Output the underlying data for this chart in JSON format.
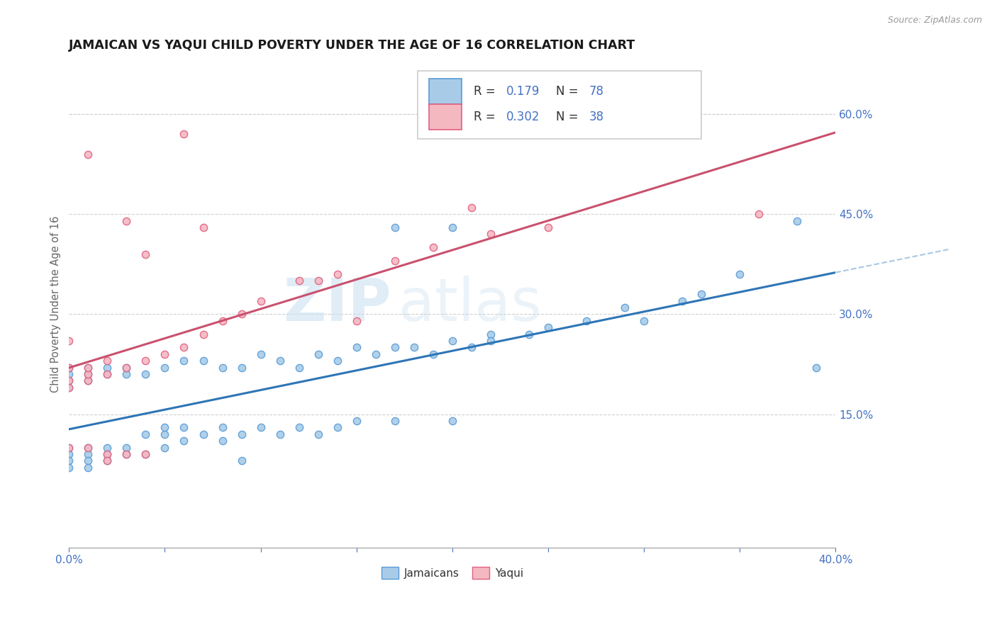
{
  "title": "JAMAICAN VS YAQUI CHILD POVERTY UNDER THE AGE OF 16 CORRELATION CHART",
  "source": "Source: ZipAtlas.com",
  "ylabel": "Child Poverty Under the Age of 16",
  "xlim": [
    0.0,
    0.4
  ],
  "ylim": [
    -0.05,
    0.68
  ],
  "xticks": [
    0.0,
    0.05,
    0.1,
    0.15,
    0.2,
    0.25,
    0.3,
    0.35,
    0.4
  ],
  "yticks_right": [
    0.15,
    0.3,
    0.45,
    0.6
  ],
  "ytick_right_labels": [
    "15.0%",
    "30.0%",
    "45.0%",
    "60.0%"
  ],
  "blue_color": "#a8cce8",
  "blue_edge_color": "#5b9bd5",
  "pink_color": "#f4b8c1",
  "pink_edge_color": "#e06080",
  "blue_line_color": "#2e75b6",
  "pink_line_color": "#c9516e",
  "blue_scatter_x": [
    0.0,
    0.0,
    0.0,
    0.0,
    0.0,
    0.0,
    0.0,
    0.0,
    0.01,
    0.01,
    0.01,
    0.01,
    0.01,
    0.01,
    0.01,
    0.02,
    0.02,
    0.02,
    0.02,
    0.02,
    0.03,
    0.03,
    0.03,
    0.03,
    0.04,
    0.04,
    0.04,
    0.05,
    0.05,
    0.05,
    0.06,
    0.06,
    0.06,
    0.07,
    0.07,
    0.08,
    0.08,
    0.08,
    0.09,
    0.09,
    0.1,
    0.1,
    0.11,
    0.11,
    0.12,
    0.12,
    0.13,
    0.13,
    0.14,
    0.14,
    0.15,
    0.15,
    0.16,
    0.17,
    0.17,
    0.18,
    0.19,
    0.2,
    0.2,
    0.21,
    0.22,
    0.22,
    0.24,
    0.25,
    0.27,
    0.29,
    0.3,
    0.32,
    0.33,
    0.35,
    0.38,
    0.39,
    0.2,
    0.17,
    0.09,
    0.05
  ],
  "blue_scatter_y": [
    0.19,
    0.2,
    0.21,
    0.22,
    0.1,
    0.09,
    0.08,
    0.07,
    0.2,
    0.21,
    0.22,
    0.1,
    0.09,
    0.08,
    0.07,
    0.21,
    0.22,
    0.1,
    0.09,
    0.08,
    0.21,
    0.22,
    0.1,
    0.09,
    0.21,
    0.12,
    0.09,
    0.22,
    0.12,
    0.1,
    0.23,
    0.13,
    0.11,
    0.23,
    0.12,
    0.22,
    0.13,
    0.11,
    0.22,
    0.12,
    0.24,
    0.13,
    0.23,
    0.12,
    0.22,
    0.13,
    0.24,
    0.12,
    0.23,
    0.13,
    0.25,
    0.14,
    0.24,
    0.25,
    0.14,
    0.25,
    0.24,
    0.26,
    0.14,
    0.25,
    0.27,
    0.26,
    0.27,
    0.28,
    0.29,
    0.31,
    0.29,
    0.32,
    0.33,
    0.36,
    0.44,
    0.22,
    0.43,
    0.43,
    0.08,
    0.13
  ],
  "pink_scatter_x": [
    0.0,
    0.0,
    0.0,
    0.0,
    0.0,
    0.01,
    0.01,
    0.01,
    0.01,
    0.02,
    0.02,
    0.02,
    0.03,
    0.03,
    0.04,
    0.04,
    0.05,
    0.06,
    0.07,
    0.08,
    0.09,
    0.1,
    0.12,
    0.13,
    0.15,
    0.17,
    0.19,
    0.22,
    0.25,
    0.01,
    0.06,
    0.14,
    0.21,
    0.36,
    0.04,
    0.07,
    0.03,
    0.02
  ],
  "pink_scatter_y": [
    0.19,
    0.2,
    0.22,
    0.26,
    0.1,
    0.2,
    0.21,
    0.22,
    0.1,
    0.21,
    0.23,
    0.09,
    0.22,
    0.09,
    0.23,
    0.09,
    0.24,
    0.25,
    0.27,
    0.29,
    0.3,
    0.32,
    0.35,
    0.35,
    0.29,
    0.38,
    0.4,
    0.42,
    0.43,
    0.54,
    0.57,
    0.36,
    0.46,
    0.45,
    0.39,
    0.43,
    0.44,
    0.08
  ],
  "watermark_zip": "ZIP",
  "watermark_atlas": "atlas",
  "background_color": "#ffffff",
  "grid_color": "#d0d0d0"
}
